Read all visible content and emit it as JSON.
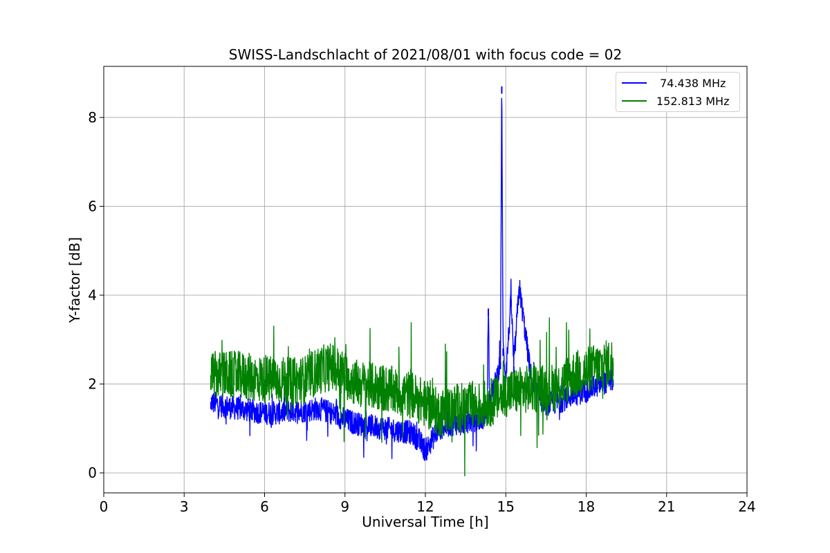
{
  "chart_data": {
    "type": "line",
    "title": "SWISS-Landschlacht of 2021/08/01 with focus code = 02",
    "xlabel": "Universal Time [h]",
    "ylabel": "Y-factor [dB]",
    "xlim": [
      0,
      24
    ],
    "ylim": [
      -0.45,
      9.15
    ],
    "xticks": [
      0,
      3,
      6,
      9,
      12,
      15,
      18,
      21,
      24
    ],
    "yticks": [
      0,
      2,
      4,
      6,
      8
    ],
    "grid": true,
    "legend_position": "top-right",
    "series": [
      {
        "name": " 74.438 MHz",
        "color": "#0000ff",
        "x": [
          4.0,
          4.5,
          5.0,
          5.5,
          6.0,
          6.5,
          7.0,
          7.5,
          8.0,
          8.5,
          9.0,
          9.5,
          10.0,
          10.5,
          11.0,
          11.5,
          11.8,
          12.0,
          12.5,
          13.0,
          13.5,
          14.0,
          14.3,
          14.35,
          14.4,
          14.6,
          14.8,
          14.85,
          14.9,
          15.0,
          15.2,
          15.3,
          15.5,
          16.0,
          16.5,
          17.0,
          17.5,
          18.0,
          18.5,
          19.0
        ],
        "y": [
          1.6,
          1.5,
          1.45,
          1.4,
          1.35,
          1.35,
          1.4,
          1.4,
          1.45,
          1.35,
          1.2,
          1.1,
          1.05,
          1.0,
          0.95,
          0.9,
          0.7,
          0.5,
          1.0,
          1.1,
          1.15,
          1.2,
          1.3,
          3.7,
          1.6,
          2.0,
          2.5,
          8.7,
          2.8,
          2.2,
          3.9,
          2.4,
          4.2,
          1.9,
          1.55,
          1.6,
          1.75,
          1.85,
          2.0,
          2.1
        ]
      },
      {
        "name": "152.813 MHz",
        "color": "#008000",
        "x": [
          4.0,
          4.5,
          5.0,
          5.5,
          6.0,
          6.5,
          7.0,
          7.5,
          8.0,
          8.5,
          9.0,
          9.5,
          10.0,
          10.5,
          11.0,
          11.5,
          12.0,
          12.5,
          13.0,
          13.5,
          14.0,
          14.5,
          15.0,
          15.5,
          16.0,
          16.5,
          17.0,
          17.5,
          18.0,
          18.5,
          19.0
        ],
        "y": [
          2.2,
          2.2,
          2.2,
          2.15,
          2.1,
          2.1,
          2.05,
          2.1,
          2.3,
          2.4,
          2.2,
          2.0,
          1.95,
          1.9,
          1.8,
          1.75,
          1.55,
          1.35,
          1.45,
          1.5,
          1.5,
          1.6,
          1.8,
          1.85,
          1.9,
          1.9,
          1.95,
          2.2,
          2.3,
          2.4,
          2.5
        ]
      }
    ]
  }
}
